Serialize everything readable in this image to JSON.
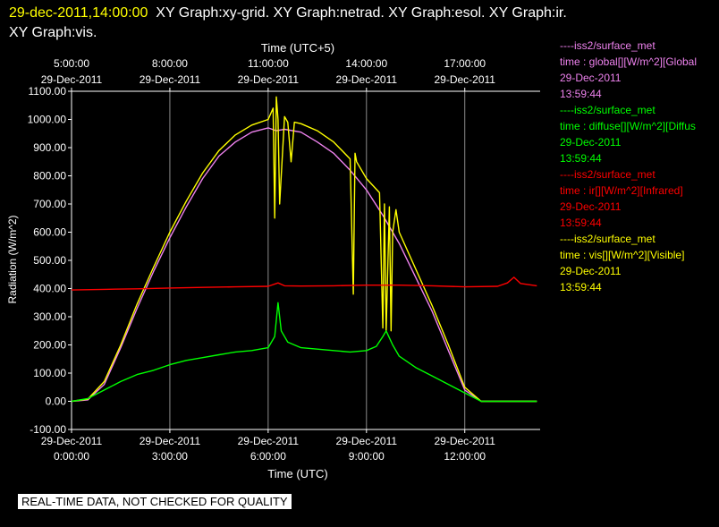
{
  "header": {
    "timestamp": "29-dec-2011,14:00:00",
    "graphs_line1": "XY Graph:xy-grid.  XY Graph:netrad.  XY Graph:esol.  XY Graph:ir.",
    "graphs_line2": "XY Graph:vis."
  },
  "legend": [
    {
      "source": "----iss2/surface_met",
      "field": "time : global[][W/m^2][Global",
      "date": "29-Dec-2011",
      "time": "13:59:44",
      "color": "#ee82ee"
    },
    {
      "source": "----iss2/surface_met",
      "field": "time : diffuse[][W/m^2][Diffus",
      "date": "29-Dec-2011",
      "time": "13:59:44",
      "color": "#00ff00"
    },
    {
      "source": "----iss2/surface_met",
      "field": "time : ir[][W/m^2][Infrared]",
      "date": "29-Dec-2011",
      "time": "13:59:44",
      "color": "#ff0000"
    },
    {
      "source": "----iss2/surface_met",
      "field": "time : vis[][W/m^2][Visible]",
      "date": "29-Dec-2011",
      "time": "13:59:44",
      "color": "#ffff00"
    }
  ],
  "banner": "REAL-TIME DATA, NOT CHECKED FOR QUALITY",
  "chart_data": {
    "type": "line",
    "xlabel": "Time (UTC)",
    "x2label": "Time (UTC+5)",
    "ylabel": "Radiation (W/m^2)",
    "xlim": [
      0,
      14.3
    ],
    "ylim": [
      -100,
      1100
    ],
    "yticks": [
      {
        "v": -100,
        "label": "-100.00"
      },
      {
        "v": 0,
        "label": "0.00"
      },
      {
        "v": 100,
        "label": "100.00"
      },
      {
        "v": 200,
        "label": "200.00"
      },
      {
        "v": 300,
        "label": "300.00"
      },
      {
        "v": 400,
        "label": "400.00"
      },
      {
        "v": 500,
        "label": "500.00"
      },
      {
        "v": 600,
        "label": "600.00"
      },
      {
        "v": 700,
        "label": "700.00"
      },
      {
        "v": 800,
        "label": "800.00"
      },
      {
        "v": 900,
        "label": "900.00"
      },
      {
        "v": 1000,
        "label": "1000.00"
      },
      {
        "v": 1100,
        "label": "1100.00"
      }
    ],
    "xticks_bottom": [
      {
        "v": 0,
        "date": "29-Dec-2011",
        "time": "0:00:00"
      },
      {
        "v": 3,
        "date": "29-Dec-2011",
        "time": "3:00:00"
      },
      {
        "v": 6,
        "date": "29-Dec-2011",
        "time": "6:00:00"
      },
      {
        "v": 9,
        "date": "29-Dec-2011",
        "time": "9:00:00"
      },
      {
        "v": 12,
        "date": "29-Dec-2011",
        "time": "12:00:00"
      }
    ],
    "xticks_top": [
      {
        "v": 0,
        "time": "5:00:00",
        "date": "29-Dec-2011"
      },
      {
        "v": 3,
        "time": "8:00:00",
        "date": "29-Dec-2011"
      },
      {
        "v": 6,
        "time": "11:00:00",
        "date": "29-Dec-2011"
      },
      {
        "v": 9,
        "time": "14:00:00",
        "date": "29-Dec-2011"
      },
      {
        "v": 12,
        "time": "17:00:00",
        "date": "29-Dec-2011"
      }
    ],
    "grid": "vertical",
    "series": [
      {
        "name": "global",
        "color": "#ee82ee",
        "x": [
          0,
          0.5,
          1,
          1.5,
          2,
          2.5,
          3,
          3.5,
          4,
          4.5,
          5,
          5.5,
          6,
          6.25,
          6.5,
          7,
          7.5,
          8,
          8.5,
          9,
          9.5,
          10,
          10.5,
          11,
          11.5,
          12,
          12.5,
          13,
          13.5,
          14.2
        ],
        "y": [
          0,
          5,
          60,
          190,
          330,
          460,
          580,
          690,
          790,
          870,
          920,
          955,
          970,
          960,
          965,
          955,
          920,
          880,
          820,
          750,
          660,
          560,
          440,
          320,
          180,
          40,
          0,
          0,
          0,
          0
        ]
      },
      {
        "name": "vis",
        "color": "#ffff00",
        "x": [
          0,
          0.5,
          1,
          1.5,
          2,
          2.5,
          3,
          3.5,
          4,
          4.5,
          5,
          5.5,
          6,
          6.15,
          6.2,
          6.25,
          6.3,
          6.35,
          6.5,
          6.6,
          6.7,
          6.8,
          7,
          7.5,
          8,
          8.5,
          8.6,
          8.65,
          8.7,
          9,
          9.4,
          9.5,
          9.55,
          9.6,
          9.7,
          9.75,
          9.8,
          9.9,
          10,
          10.5,
          11,
          11.5,
          12,
          12.5,
          13,
          13.5,
          14.2
        ],
        "y": [
          0,
          8,
          70,
          200,
          345,
          475,
          600,
          710,
          810,
          890,
          945,
          980,
          1000,
          1040,
          650,
          1080,
          1000,
          700,
          1010,
          990,
          850,
          990,
          985,
          960,
          920,
          860,
          380,
          880,
          850,
          790,
          740,
          260,
          700,
          250,
          690,
          250,
          600,
          680,
          600,
          470,
          340,
          200,
          50,
          0,
          0,
          0,
          0
        ]
      },
      {
        "name": "diffuse",
        "color": "#00ff00",
        "x": [
          0,
          0.5,
          1,
          1.5,
          2,
          2.5,
          3,
          3.5,
          4,
          4.5,
          5,
          5.5,
          6,
          6.2,
          6.3,
          6.4,
          6.6,
          7,
          7.5,
          8,
          8.5,
          9,
          9.3,
          9.5,
          9.6,
          9.8,
          10,
          10.5,
          11,
          11.5,
          12,
          12.5,
          13,
          13.5,
          14.2
        ],
        "y": [
          0,
          10,
          40,
          70,
          95,
          110,
          130,
          145,
          155,
          165,
          175,
          180,
          190,
          230,
          350,
          250,
          210,
          190,
          185,
          180,
          175,
          180,
          195,
          230,
          250,
          200,
          160,
          120,
          90,
          60,
          30,
          0,
          0,
          0,
          0
        ]
      },
      {
        "name": "ir",
        "color": "#ff0000",
        "x": [
          0,
          1,
          2,
          3,
          4,
          5,
          6,
          6.3,
          6.5,
          7,
          8,
          9,
          10,
          11,
          12,
          13,
          13.3,
          13.5,
          13.7,
          14.2
        ],
        "y": [
          395,
          397,
          399,
          402,
          404,
          406,
          408,
          420,
          410,
          409,
          410,
          412,
          412,
          410,
          406,
          408,
          420,
          440,
          418,
          410
        ]
      }
    ]
  }
}
